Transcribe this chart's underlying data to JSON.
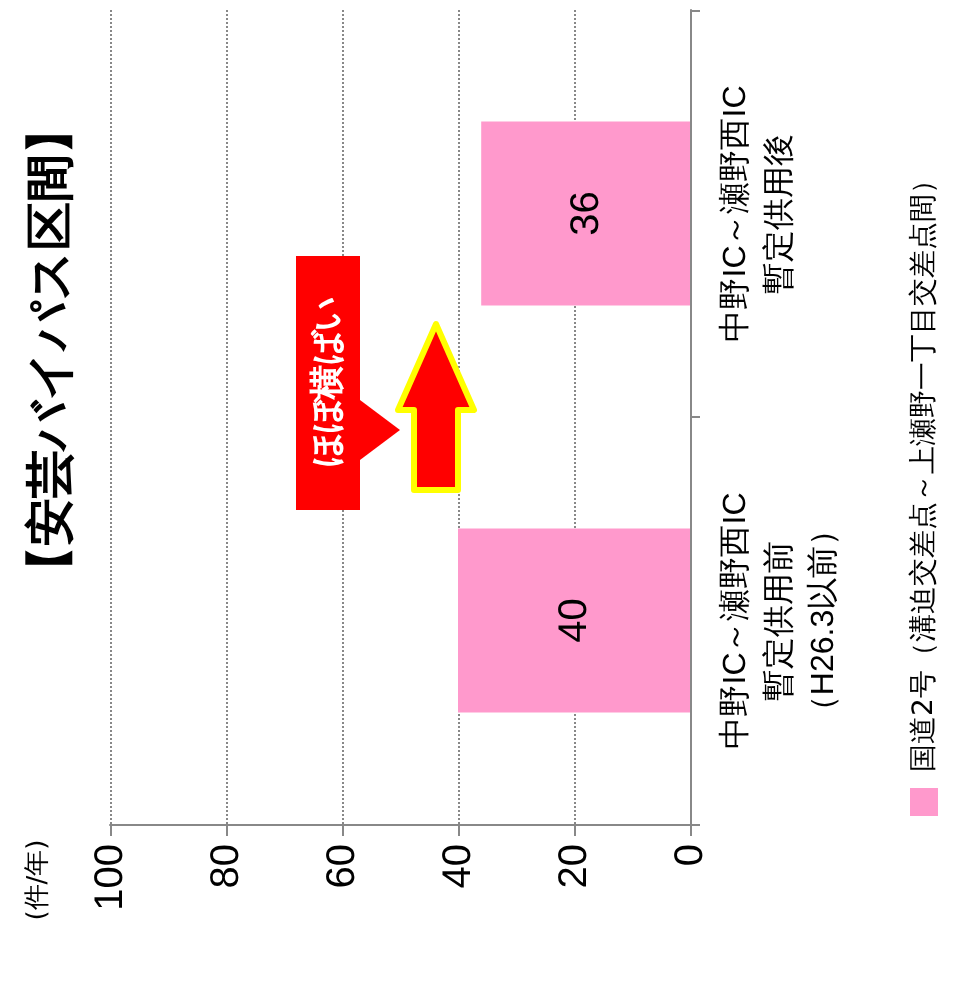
{
  "chart_data": {
    "type": "bar",
    "orientation": "horizontal",
    "title": "【安芸バイパス区間】",
    "ylabel": "(件/年)",
    "categories": [
      "中野IC～瀬野西IC暫定供用後",
      "中野IC～瀬野西IC暫定供用前（H26.3以前）"
    ],
    "series": [
      {
        "name": "国道2号（溝迫交差点～上瀬野一丁目交差点間）",
        "color": "#ff99cc",
        "values": [
          36,
          40
        ]
      }
    ],
    "xlim": [
      100,
      0
    ],
    "xticks": [
      100,
      80,
      60,
      40,
      20,
      0
    ],
    "grid": "x",
    "legend": "right",
    "data_labels": true,
    "annotations": [
      "ほぼ横ばい"
    ]
  }
}
